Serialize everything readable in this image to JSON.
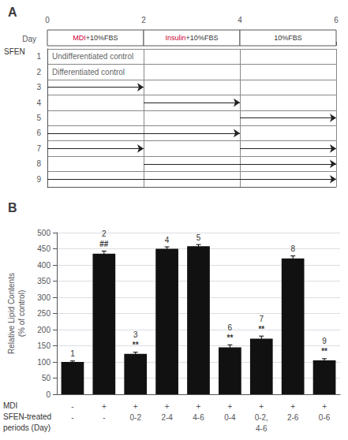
{
  "chart_data": [
    {
      "type": "gantt",
      "title": "A",
      "xlabel": "Day",
      "xlim": [
        0,
        6
      ],
      "xticks": [
        0,
        2,
        4,
        6
      ],
      "phases": [
        {
          "start": 0,
          "end": 2,
          "text": [
            {
              "text": "MDI",
              "color": "#cc0033"
            },
            {
              "text": "+10%FBS"
            }
          ]
        },
        {
          "start": 2,
          "end": 4,
          "text": [
            {
              "text": "Insulin",
              "color": "#cc0033"
            },
            {
              "text": "+10%FBS"
            }
          ]
        },
        {
          "start": 4,
          "end": 6,
          "text": [
            {
              "text": "10%FBS"
            }
          ]
        }
      ],
      "row_header": "SFEN",
      "categories": [
        "1",
        "2",
        "3",
        "4",
        "5",
        "6",
        "7",
        "8",
        "9"
      ],
      "row_texts": [
        "Undifferentiated control",
        "Differentiated control",
        null,
        null,
        null,
        null,
        null,
        null,
        null
      ],
      "periods": [
        [],
        [],
        [
          [
            0,
            2
          ]
        ],
        [
          [
            2,
            4
          ]
        ],
        [
          [
            4,
            6
          ]
        ],
        [
          [
            0,
            4
          ]
        ],
        [
          [
            0,
            2
          ],
          [
            4,
            6
          ]
        ],
        [
          [
            2,
            6
          ]
        ],
        [
          [
            0,
            6
          ]
        ]
      ]
    },
    {
      "type": "bar",
      "title": "B",
      "categories": [
        "1",
        "2",
        "3",
        "4",
        "5",
        "6",
        "7",
        "8",
        "9"
      ],
      "values": [
        100,
        435,
        125,
        450,
        458,
        145,
        172,
        420,
        105
      ],
      "errors": [
        3,
        8,
        5,
        6,
        5,
        8,
        8,
        8,
        5
      ],
      "annotations": [
        null,
        "##",
        "**",
        null,
        null,
        "**",
        "**",
        null,
        "**"
      ],
      "color": "#111111",
      "ylabel": "Relative Lipid Contents\n(% of control)",
      "ylim": [
        0,
        500
      ],
      "yticks": [
        0,
        50,
        100,
        150,
        200,
        250,
        300,
        350,
        400,
        450,
        500
      ],
      "mdi_row": [
        "-",
        "+",
        "+",
        "+",
        "+",
        "+",
        "+",
        "+",
        "+"
      ],
      "sfen_row": [
        "-",
        "-",
        "0-2",
        "2-4",
        "4-6",
        "0-4",
        "0-2,\n4-6",
        "2-6",
        "0-6"
      ],
      "row_labels": [
        "MDI",
        "SFEN-treated",
        "periods (Day)"
      ]
    }
  ]
}
